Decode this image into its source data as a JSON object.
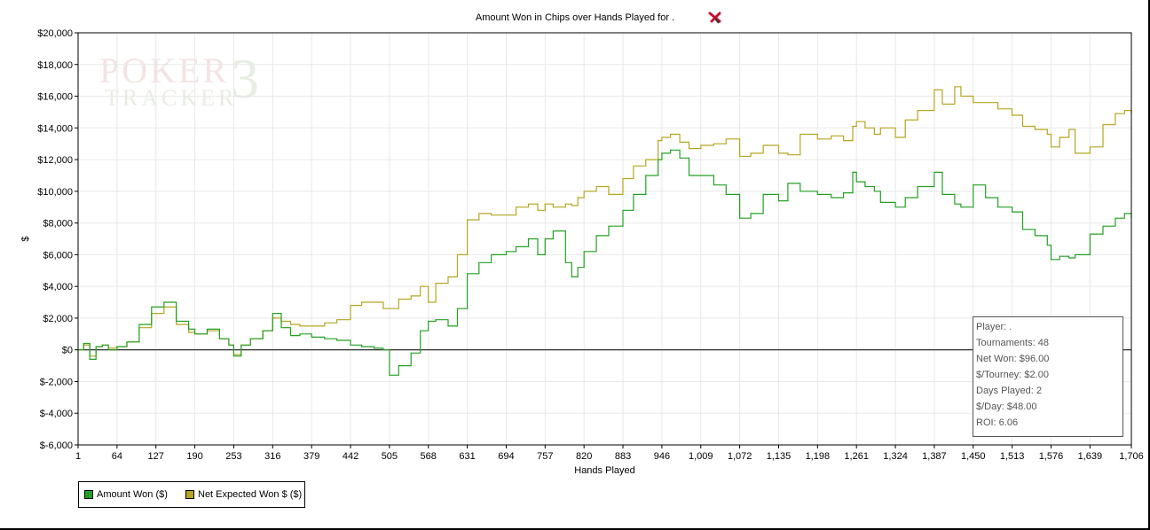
{
  "chart_data": {
    "type": "line",
    "title": "Amount Won in Chips over Hands Played for .",
    "xlabel": "Hands Played",
    "ylabel": "$",
    "xlim": [
      1,
      1706
    ],
    "ylim": [
      -6000,
      20000
    ],
    "x_ticks": [
      1,
      64,
      127,
      190,
      253,
      316,
      379,
      442,
      505,
      568,
      631,
      694,
      757,
      820,
      883,
      946,
      1009,
      1072,
      1135,
      1198,
      1261,
      1324,
      1387,
      1450,
      1513,
      1576,
      1639,
      1706
    ],
    "x_tick_labels": [
      "1",
      "64",
      "127",
      "190",
      "253",
      "316",
      "379",
      "442",
      "505",
      "568",
      "631",
      "694",
      "757",
      "820",
      "883",
      "946",
      "1,009",
      "1,072",
      "1,135",
      "1,198",
      "1,261",
      "1,324",
      "1,387",
      "1,450",
      "1,513",
      "1,576",
      "1,639",
      "1,706"
    ],
    "y_ticks": [
      -6000,
      -4000,
      -2000,
      0,
      2000,
      4000,
      6000,
      8000,
      10000,
      12000,
      14000,
      16000,
      18000,
      20000
    ],
    "y_tick_labels": [
      "$-6,000",
      "$-4,000",
      "$-2,000",
      "$0",
      "$2,000",
      "$4,000",
      "$6,000",
      "$8,000",
      "$10,000",
      "$12,000",
      "$14,000",
      "$16,000",
      "$18,000",
      "$20,000"
    ],
    "grid": true,
    "legend_position": "bottom-left",
    "series": [
      {
        "name": "Amount Won ($)",
        "color": "#22a022",
        "x": [
          1,
          10,
          20,
          30,
          40,
          50,
          64,
          80,
          100,
          120,
          140,
          160,
          180,
          190,
          210,
          230,
          245,
          253,
          265,
          280,
          300,
          316,
          330,
          345,
          360,
          379,
          400,
          420,
          442,
          460,
          480,
          495,
          505,
          520,
          540,
          555,
          568,
          580,
          600,
          615,
          631,
          650,
          670,
          694,
          710,
          730,
          745,
          757,
          770,
          790,
          800,
          810,
          820,
          840,
          860,
          883,
          900,
          920,
          940,
          946,
          960,
          975,
          990,
          1009,
          1030,
          1050,
          1072,
          1090,
          1110,
          1135,
          1150,
          1170,
          1198,
          1220,
          1240,
          1255,
          1261,
          1275,
          1290,
          1300,
          1324,
          1340,
          1360,
          1387,
          1400,
          1420,
          1430,
          1450,
          1470,
          1490,
          1513,
          1530,
          1550,
          1570,
          1576,
          1590,
          1605,
          1615,
          1639,
          1660,
          1680,
          1695,
          1706
        ],
        "y": [
          0,
          400,
          -600,
          200,
          300,
          0,
          200,
          500,
          1600,
          2700,
          3000,
          1800,
          1300,
          1000,
          1300,
          700,
          300,
          -400,
          300,
          700,
          1200,
          2300,
          1400,
          900,
          1000,
          800,
          700,
          600,
          300,
          200,
          100,
          0,
          -1600,
          -1000,
          -200,
          1200,
          1800,
          1900,
          1500,
          2600,
          4800,
          5500,
          6000,
          6200,
          6500,
          7000,
          6000,
          7000,
          7500,
          5500,
          4600,
          5200,
          6200,
          7200,
          7800,
          8800,
          9800,
          11000,
          12000,
          12400,
          12600,
          12100,
          11000,
          11000,
          10400,
          9800,
          8300,
          8600,
          9800,
          9400,
          10500,
          10000,
          9800,
          9600,
          9900,
          11200,
          10600,
          10300,
          10000,
          9300,
          9000,
          9600,
          10300,
          11200,
          9800,
          9200,
          9000,
          10400,
          9600,
          9000,
          8700,
          7600,
          7200,
          6600,
          5700,
          5900,
          5800,
          6000,
          7300,
          7800,
          8300,
          8600,
          8300
        ]
      },
      {
        "name": "Net Expected Won $ ($)",
        "color": "#b5a520",
        "x": [
          1,
          10,
          20,
          30,
          40,
          50,
          64,
          80,
          100,
          120,
          140,
          160,
          180,
          190,
          210,
          230,
          245,
          253,
          265,
          280,
          300,
          316,
          330,
          345,
          360,
          379,
          400,
          420,
          442,
          460,
          480,
          495,
          505,
          520,
          540,
          555,
          568,
          580,
          600,
          615,
          631,
          650,
          670,
          694,
          710,
          730,
          745,
          757,
          770,
          790,
          800,
          810,
          820,
          840,
          860,
          883,
          900,
          920,
          940,
          946,
          960,
          975,
          990,
          1009,
          1030,
          1050,
          1072,
          1090,
          1110,
          1135,
          1150,
          1170,
          1198,
          1220,
          1240,
          1255,
          1261,
          1275,
          1290,
          1300,
          1324,
          1340,
          1360,
          1387,
          1400,
          1420,
          1430,
          1450,
          1470,
          1490,
          1513,
          1530,
          1550,
          1570,
          1576,
          1590,
          1605,
          1615,
          1639,
          1660,
          1680,
          1695,
          1706
        ],
        "y": [
          0,
          300,
          -400,
          200,
          300,
          100,
          200,
          500,
          1400,
          2300,
          2700,
          1600,
          1100,
          1000,
          1200,
          700,
          300,
          -300,
          300,
          700,
          1200,
          2000,
          1800,
          1600,
          1500,
          1500,
          1700,
          1900,
          2800,
          3000,
          3000,
          2600,
          2600,
          3200,
          3400,
          4000,
          3000,
          4200,
          4600,
          6000,
          8200,
          8600,
          8500,
          8500,
          9000,
          9200,
          8800,
          9200,
          9000,
          9200,
          9100,
          9600,
          10000,
          10300,
          9800,
          10800,
          11600,
          12000,
          13200,
          13400,
          13600,
          13100,
          12700,
          12900,
          13000,
          13300,
          12200,
          12400,
          12900,
          12400,
          12300,
          13600,
          13300,
          13500,
          13200,
          14100,
          14400,
          14000,
          13600,
          14000,
          13400,
          14500,
          15100,
          16400,
          15500,
          16600,
          16000,
          15600,
          15600,
          15200,
          14800,
          14100,
          13900,
          13600,
          12800,
          13400,
          13900,
          12400,
          12800,
          14200,
          14900,
          15100,
          14900
        ]
      }
    ]
  },
  "legend": {
    "items": [
      {
        "label": "Amount Won ($)",
        "color": "#22a022"
      },
      {
        "label": "Net Expected Won $ ($)",
        "color": "#b5a520"
      }
    ]
  },
  "stats": {
    "player": "Player: .",
    "tournaments": "Tournaments: 48",
    "net_won": "Net Won: $96.00",
    "per_tourney": "$/Tourney: $2.00",
    "days_played": "Days Played: 2",
    "per_day": "$/Day: $48.00",
    "roi": "ROI: 6.06"
  },
  "watermark": {
    "line1": "POKER",
    "line2": "TRACKER",
    "version": "3"
  },
  "icons": {
    "title_icon": "red-close-icon"
  }
}
